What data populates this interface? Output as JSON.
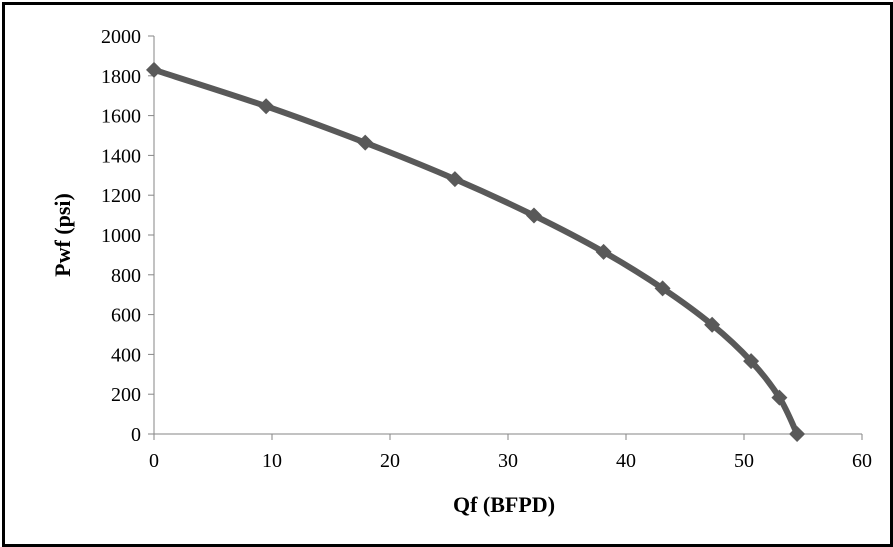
{
  "chart_data": {
    "type": "line",
    "title": "",
    "xlabel": "Qf (BFPD)",
    "ylabel": "Pwf (psi)",
    "xlim": [
      0,
      60
    ],
    "ylim": [
      0,
      2000
    ],
    "xticks": [
      0,
      10,
      20,
      30,
      40,
      50,
      60
    ],
    "yticks": [
      0,
      200,
      400,
      600,
      800,
      1000,
      1200,
      1400,
      1600,
      1800,
      2000
    ],
    "grid": false,
    "legend": "none",
    "marker": "diamond",
    "series": [
      {
        "color": "#595959",
        "points": [
          {
            "x": 0,
            "y": 1830
          },
          {
            "x": 9.5,
            "y": 1647
          },
          {
            "x": 17.9,
            "y": 1464
          },
          {
            "x": 25.5,
            "y": 1281
          },
          {
            "x": 32.2,
            "y": 1098
          },
          {
            "x": 38.1,
            "y": 915
          },
          {
            "x": 43.1,
            "y": 732
          },
          {
            "x": 47.3,
            "y": 549
          },
          {
            "x": 50.6,
            "y": 366
          },
          {
            "x": 53.0,
            "y": 183
          },
          {
            "x": 54.5,
            "y": 0
          }
        ]
      }
    ]
  }
}
